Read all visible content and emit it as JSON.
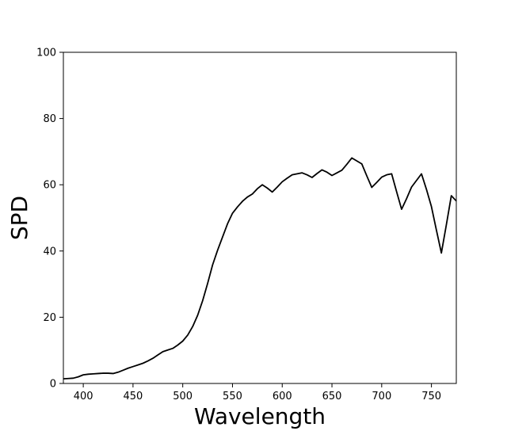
{
  "chart_data": {
    "type": "line",
    "title": "",
    "xlabel": "Wavelength",
    "ylabel": "SPD",
    "xlim": [
      380,
      775
    ],
    "ylim": [
      0,
      100
    ],
    "xticks": [
      400,
      450,
      500,
      550,
      600,
      650,
      700,
      750
    ],
    "yticks": [
      0,
      20,
      40,
      60,
      80,
      100
    ],
    "grid": false,
    "line_color": "#000000",
    "series": [
      {
        "x": [
          380,
          385,
          390,
          395,
          400,
          405,
          410,
          415,
          420,
          425,
          430,
          435,
          440,
          445,
          450,
          455,
          460,
          465,
          470,
          475,
          480,
          485,
          490,
          495,
          500,
          505,
          510,
          515,
          520,
          525,
          530,
          535,
          540,
          545,
          550,
          555,
          560,
          565,
          570,
          575,
          580,
          585,
          590,
          595,
          600,
          605,
          610,
          615,
          620,
          625,
          630,
          635,
          640,
          645,
          650,
          655,
          660,
          665,
          670,
          675,
          680,
          685,
          690,
          695,
          700,
          705,
          710,
          715,
          720,
          725,
          730,
          735,
          740,
          745,
          750,
          755,
          760,
          765,
          770,
          775
        ],
        "y": [
          1.4,
          1.5,
          1.6,
          2.0,
          2.6,
          2.8,
          2.9,
          3.0,
          3.1,
          3.1,
          3.0,
          3.4,
          4.0,
          4.6,
          5.1,
          5.6,
          6.1,
          6.8,
          7.6,
          8.6,
          9.6,
          10.1,
          10.6,
          11.6,
          12.8,
          14.6,
          17.2,
          20.6,
          25.0,
          30.2,
          35.8,
          40.2,
          44.2,
          48.2,
          51.4,
          53.3,
          55.0,
          56.3,
          57.2,
          58.8,
          60.0,
          59.0,
          57.8,
          59.3,
          60.9,
          62.0,
          63.0,
          63.3,
          63.6,
          63.0,
          62.2,
          63.4,
          64.5,
          63.8,
          62.8,
          63.6,
          64.4,
          66.2,
          68.1,
          67.2,
          66.3,
          62.7,
          59.2,
          60.7,
          62.3,
          63.0,
          63.3,
          57.9,
          52.6,
          55.8,
          59.3,
          61.3,
          63.3,
          58.6,
          53.4,
          46.3,
          39.4,
          47.9,
          56.7,
          55.1
        ]
      }
    ]
  }
}
